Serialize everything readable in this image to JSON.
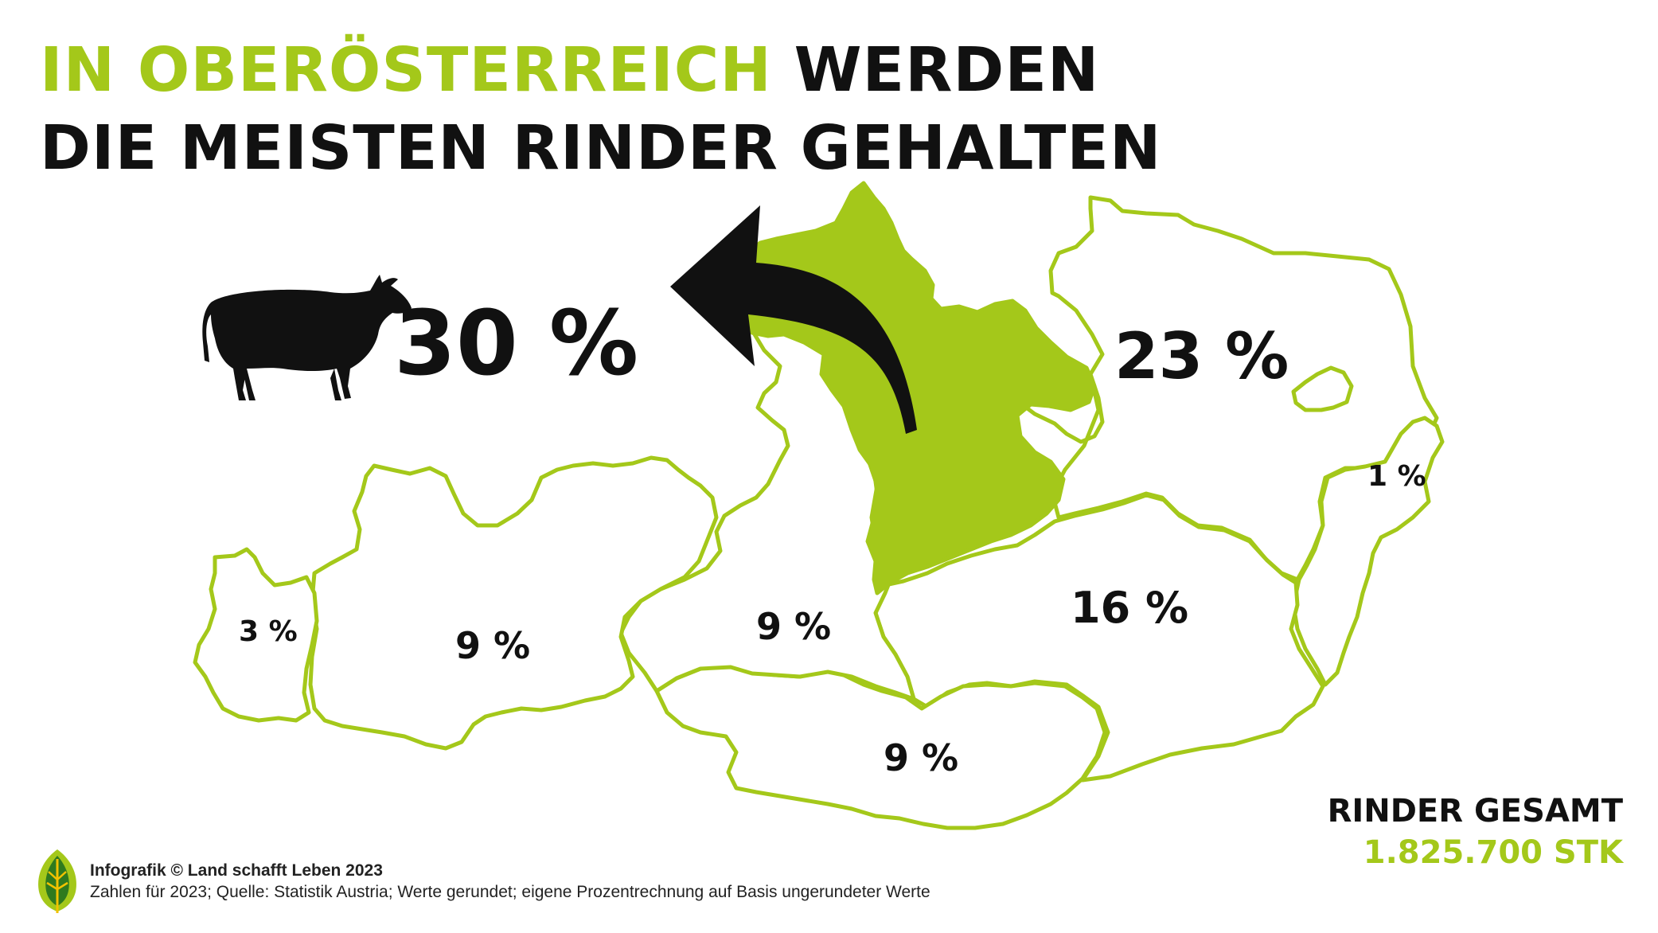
{
  "headline": {
    "accent": "IN OBERÖSTERREICH",
    "rest_line1": " WERDEN",
    "line2": "DIE MEISTEN RINDER GEHALTEN"
  },
  "callout": {
    "value": "30 %",
    "icon": "cow-icon"
  },
  "colors": {
    "accent": "#a4c81a",
    "text": "#111111",
    "background": "#ffffff"
  },
  "chart_data": {
    "type": "map",
    "unit": "%",
    "highlighted": "Oberösterreich",
    "regions": [
      {
        "name": "Oberösterreich",
        "label": "30 %",
        "value": 30
      },
      {
        "name": "Niederösterreich",
        "label": "23 %",
        "value": 23
      },
      {
        "name": "Steiermark",
        "label": "16 %",
        "value": 16
      },
      {
        "name": "Salzburg",
        "label": "9 %",
        "value": 9
      },
      {
        "name": "Tirol",
        "label": "9 %",
        "value": 9
      },
      {
        "name": "Kärnten",
        "label": "9 %",
        "value": 9
      },
      {
        "name": "Vorarlberg",
        "label": "3 %",
        "value": 3
      },
      {
        "name": "Burgenland",
        "label": "1 %",
        "value": 1
      },
      {
        "name": "Wien",
        "label": "",
        "value": null
      }
    ]
  },
  "total": {
    "label": "RINDER GESAMT",
    "value": "1.825.700 STK"
  },
  "footer": {
    "credit": "Infografik © Land schafft Leben 2023",
    "source": "Zahlen für 2023; Quelle: Statistik Austria; Werte gerundet; eigene Prozentrechnung auf Basis ungerundeter Werte",
    "logo": "leaf-logo-icon"
  }
}
